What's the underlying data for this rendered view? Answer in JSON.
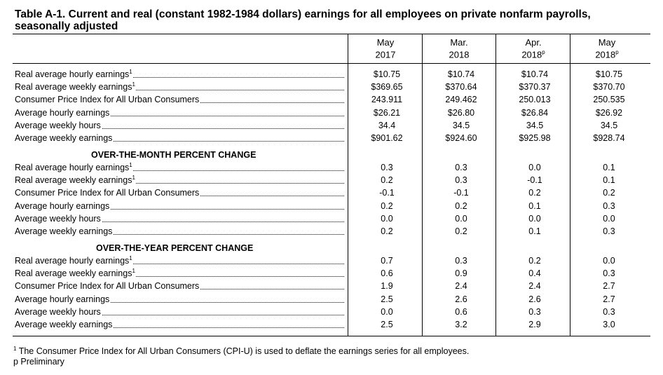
{
  "title": "Table A-1. Current and real (constant 1982-1984 dollars) earnings for all employees on private nonfarm payrolls, seasonally adjusted",
  "columns": [
    {
      "line1": "May",
      "line2": "2017",
      "marker": ""
    },
    {
      "line1": "Mar.",
      "line2": "2018",
      "marker": ""
    },
    {
      "line1": "Apr.",
      "line2": "2018",
      "marker": "p"
    },
    {
      "line1": "May",
      "line2": "2018",
      "marker": "p"
    }
  ],
  "levels": [
    {
      "label": "Real average hourly earnings",
      "sup": "1",
      "values": [
        "$10.75",
        "$10.74",
        "$10.74",
        "$10.75"
      ]
    },
    {
      "label": "Real average weekly earnings",
      "sup": "1",
      "values": [
        "$369.65",
        "$370.64",
        "$370.37",
        "$370.70"
      ]
    },
    {
      "label": "Consumer Price Index for All Urban Consumers",
      "sup": "",
      "values": [
        "243.911",
        "249.462",
        "250.013",
        "250.535"
      ]
    },
    {
      "label": "Average hourly earnings",
      "sup": "",
      "values": [
        "$26.21",
        "$26.80",
        "$26.84",
        "$26.92"
      ]
    },
    {
      "label": "Average weekly hours",
      "sup": "",
      "values": [
        "34.4",
        "34.5",
        "34.5",
        "34.5"
      ]
    },
    {
      "label": "Average weekly earnings",
      "sup": "",
      "values": [
        "$901.62",
        "$924.60",
        "$925.98",
        "$928.74"
      ]
    }
  ],
  "month_heading": "OVER-THE-MONTH PERCENT CHANGE",
  "month_change": [
    {
      "label": "Real average hourly earnings",
      "sup": "1",
      "values": [
        "0.3",
        "0.3",
        "0.0",
        "0.1"
      ]
    },
    {
      "label": "Real average weekly earnings",
      "sup": "1",
      "values": [
        "0.2",
        "0.3",
        "-0.1",
        "0.1"
      ]
    },
    {
      "label": "Consumer Price Index for All Urban Consumers",
      "sup": "",
      "values": [
        "-0.1",
        "-0.1",
        "0.2",
        "0.2"
      ]
    },
    {
      "label": "Average hourly earnings",
      "sup": "",
      "values": [
        "0.2",
        "0.2",
        "0.1",
        "0.3"
      ]
    },
    {
      "label": "Average weekly hours",
      "sup": "",
      "values": [
        "0.0",
        "0.0",
        "0.0",
        "0.0"
      ]
    },
    {
      "label": "Average weekly earnings",
      "sup": "",
      "values": [
        "0.2",
        "0.2",
        "0.1",
        "0.3"
      ]
    }
  ],
  "year_heading": "OVER-THE-YEAR PERCENT CHANGE",
  "year_change": [
    {
      "label": "Real average hourly earnings",
      "sup": "1",
      "values": [
        "0.7",
        "0.3",
        "0.2",
        "0.0"
      ]
    },
    {
      "label": "Real average weekly earnings",
      "sup": "1",
      "values": [
        "0.6",
        "0.9",
        "0.4",
        "0.3"
      ]
    },
    {
      "label": "Consumer Price Index for All Urban Consumers",
      "sup": "",
      "values": [
        "1.9",
        "2.4",
        "2.4",
        "2.7"
      ]
    },
    {
      "label": "Average hourly earnings",
      "sup": "",
      "values": [
        "2.5",
        "2.6",
        "2.6",
        "2.7"
      ]
    },
    {
      "label": "Average weekly hours",
      "sup": "",
      "values": [
        "0.0",
        "0.6",
        "0.3",
        "0.3"
      ]
    },
    {
      "label": "Average weekly earnings",
      "sup": "",
      "values": [
        "2.5",
        "3.2",
        "2.9",
        "3.0"
      ]
    }
  ],
  "footnotes": {
    "note1_marker": "1",
    "note1_text": " The Consumer Price Index for All Urban Consumers (CPI-U) is used to deflate the earnings series for all employees.",
    "note2_text": "p Preliminary"
  }
}
